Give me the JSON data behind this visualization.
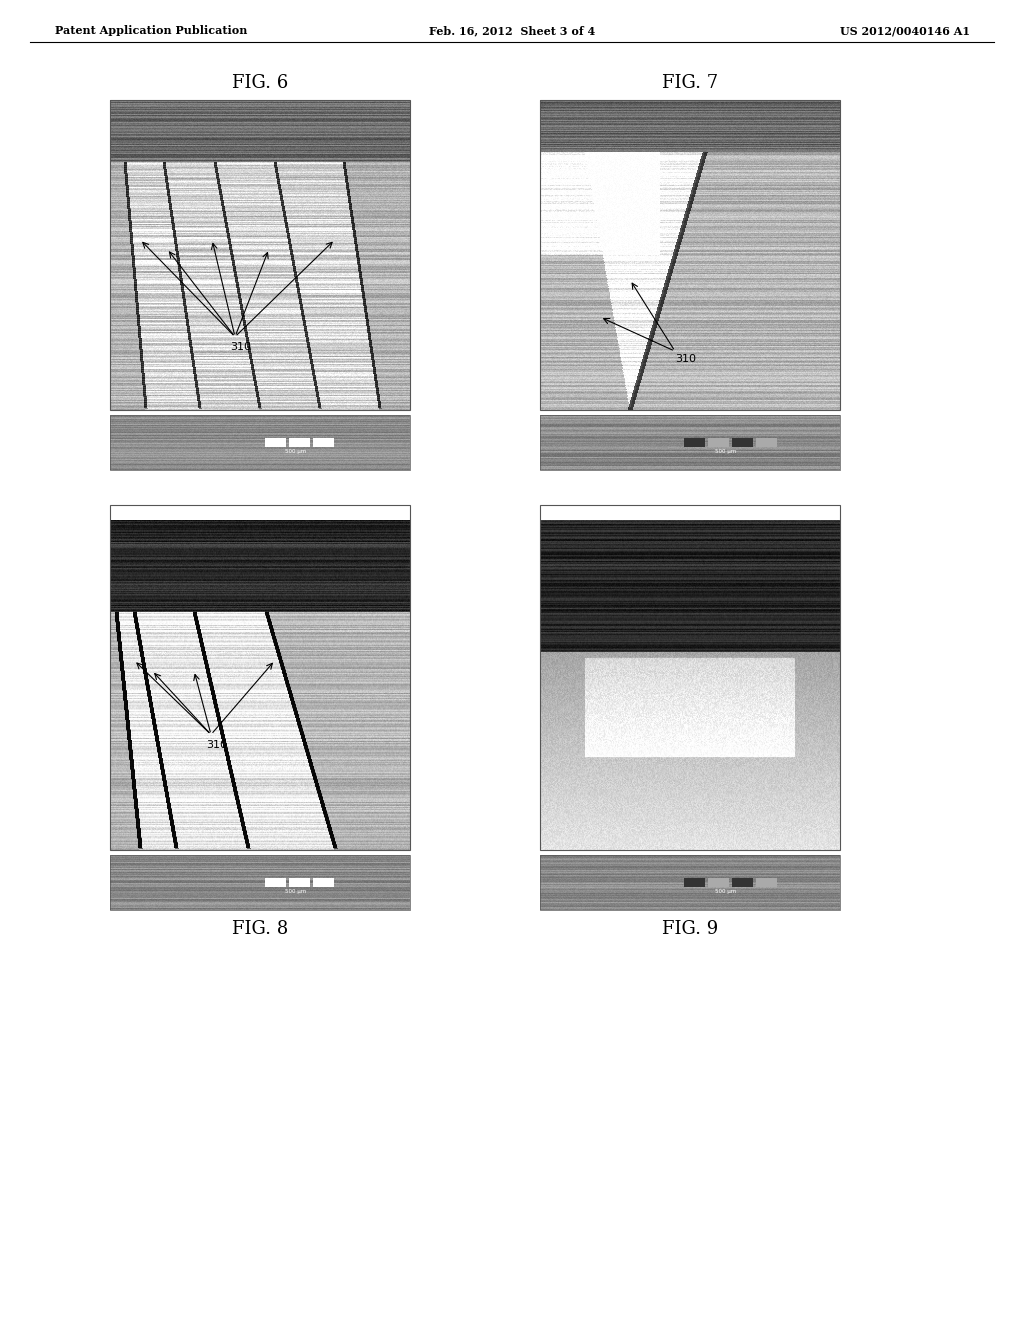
{
  "header_left": "Patent Application Publication",
  "header_mid": "Feb. 16, 2012  Sheet 3 of 4",
  "header_right": "US 2012/0040146 A1",
  "fig6_label": "FIG. 6",
  "fig7_label": "FIG. 7",
  "fig8_label": "FIG. 8",
  "fig9_label": "FIG. 9",
  "label_310": "310",
  "bg_color": "#ffffff",
  "header_font_size": 8,
  "fig_label_font_size": 13
}
